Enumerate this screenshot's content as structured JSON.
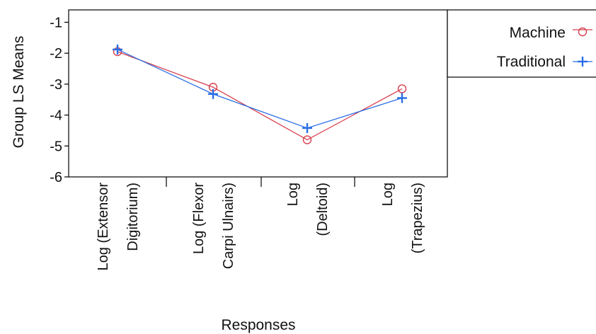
{
  "chart_data": {
    "type": "line",
    "xlabel": "Responses",
    "ylabel": "Group  LS Means",
    "ylim": [
      -6,
      -1
    ],
    "yticks": [
      -1,
      -2,
      -3,
      -4,
      -5,
      -6
    ],
    "ytick_labels": [
      "-1",
      "-2",
      "-3",
      "-4",
      "-5",
      "-6"
    ],
    "categories": [
      [
        "Log (Extensor",
        "Digitorium)"
      ],
      [
        "Log (Flexor",
        "Carpi Ulnairs)"
      ],
      [
        "Log",
        "(Deltoid)"
      ],
      [
        "Log",
        "(Trapezius)"
      ]
    ],
    "series": [
      {
        "name": "Machine",
        "values": [
          -1.95,
          -3.1,
          -4.8,
          -3.15
        ],
        "color": "#d8404f",
        "marker": "circle"
      },
      {
        "name": "Traditional",
        "values": [
          -1.88,
          -3.32,
          -4.42,
          -3.45
        ],
        "color": "#2a6ee6",
        "marker": "plus"
      }
    ],
    "legend": "top-right",
    "grid": false
  }
}
